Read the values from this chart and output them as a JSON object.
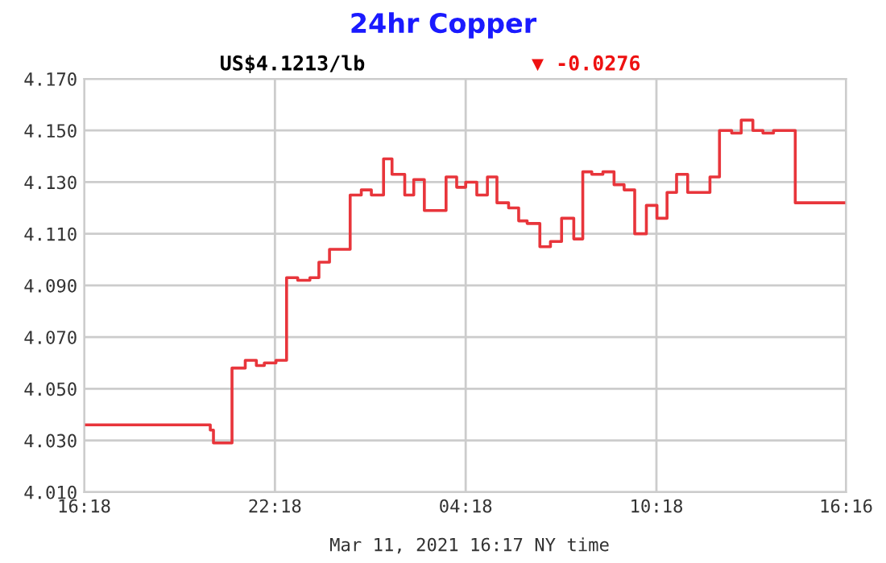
{
  "chart_data": {
    "type": "step",
    "title": "24hr Copper",
    "subtitle": "US$4.1213/lb",
    "annotations": [
      "▼ -0.0276",
      "Mar 11, 2021 16:17 NY time"
    ],
    "x": [
      "2021-03-10T16:18",
      "2021-03-10T20:16",
      "2021-03-10T20:22",
      "2021-03-10T20:37",
      "2021-03-10T20:57",
      "2021-03-10T21:22",
      "2021-03-10T21:43",
      "2021-03-10T21:58",
      "2021-03-10T22:20",
      "2021-03-10T22:40",
      "2021-03-10T23:01",
      "2021-03-10T23:24",
      "2021-03-10T23:41",
      "2021-03-11T00:01",
      "2021-03-11T00:22",
      "2021-03-11T00:40",
      "2021-03-11T01:01",
      "2021-03-11T01:20",
      "2021-03-11T01:43",
      "2021-03-11T01:59",
      "2021-03-11T02:23",
      "2021-03-11T02:40",
      "2021-03-11T03:00",
      "2021-03-11T03:41",
      "2021-03-11T04:01",
      "2021-03-11T04:18",
      "2021-03-11T04:39",
      "2021-03-11T04:59",
      "2021-03-11T05:17",
      "2021-03-11T05:39",
      "2021-03-11T05:58",
      "2021-03-11T06:14",
      "2021-03-11T06:38",
      "2021-03-11T06:58",
      "2021-03-11T07:19",
      "2021-03-11T07:42",
      "2021-03-11T07:59",
      "2021-03-11T08:16",
      "2021-03-11T08:37",
      "2021-03-11T08:58",
      "2021-03-11T09:17",
      "2021-03-11T09:37",
      "2021-03-11T09:59",
      "2021-03-11T10:19",
      "2021-03-11T10:38",
      "2021-03-11T10:56",
      "2021-03-11T11:17",
      "2021-03-11T11:59",
      "2021-03-11T12:17",
      "2021-03-11T12:40",
      "2021-03-11T12:58",
      "2021-03-11T13:20",
      "2021-03-11T13:39",
      "2021-03-11T13:59",
      "2021-03-11T14:40",
      "2021-03-11T16:16"
    ],
    "series": [
      {
        "color": "#e8353b",
        "values": [
          4.036,
          4.034,
          4.029,
          4.029,
          4.058,
          4.061,
          4.059,
          4.06,
          4.061,
          4.093,
          4.092,
          4.093,
          4.099,
          4.104,
          4.104,
          4.125,
          4.127,
          4.125,
          4.139,
          4.133,
          4.125,
          4.131,
          4.119,
          4.132,
          4.128,
          4.13,
          4.125,
          4.132,
          4.122,
          4.12,
          4.115,
          4.114,
          4.105,
          4.107,
          4.116,
          4.108,
          4.134,
          4.133,
          4.134,
          4.129,
          4.127,
          4.11,
          4.121,
          4.116,
          4.126,
          4.133,
          4.126,
          4.132,
          4.15,
          4.149,
          4.154,
          4.15,
          4.149,
          4.15,
          4.122,
          4.122
        ]
      }
    ],
    "xlim": [
      "2021-03-10T16:18",
      "2021-03-11T16:16"
    ],
    "xticks": [
      {
        "value": "2021-03-10T16:18",
        "label": "16:18"
      },
      {
        "value": "2021-03-10T22:18",
        "label": "22:18"
      },
      {
        "value": "2021-03-11T04:18",
        "label": "04:18"
      },
      {
        "value": "2021-03-11T10:18",
        "label": "10:18"
      },
      {
        "value": "2021-03-11T16:16",
        "label": "16:16"
      }
    ],
    "ylim": [
      4.01,
      4.17
    ],
    "yticks": [
      {
        "value": 4.01,
        "label": "4.010"
      },
      {
        "value": 4.03,
        "label": "4.030"
      },
      {
        "value": 4.05,
        "label": "4.050"
      },
      {
        "value": 4.07,
        "label": "4.070"
      },
      {
        "value": 4.09,
        "label": "4.090"
      },
      {
        "value": 4.11,
        "label": "4.110"
      },
      {
        "value": 4.13,
        "label": "4.130"
      },
      {
        "value": 4.15,
        "label": "4.150"
      },
      {
        "value": 4.17,
        "label": "4.170"
      }
    ],
    "grid": true,
    "legend": false
  }
}
